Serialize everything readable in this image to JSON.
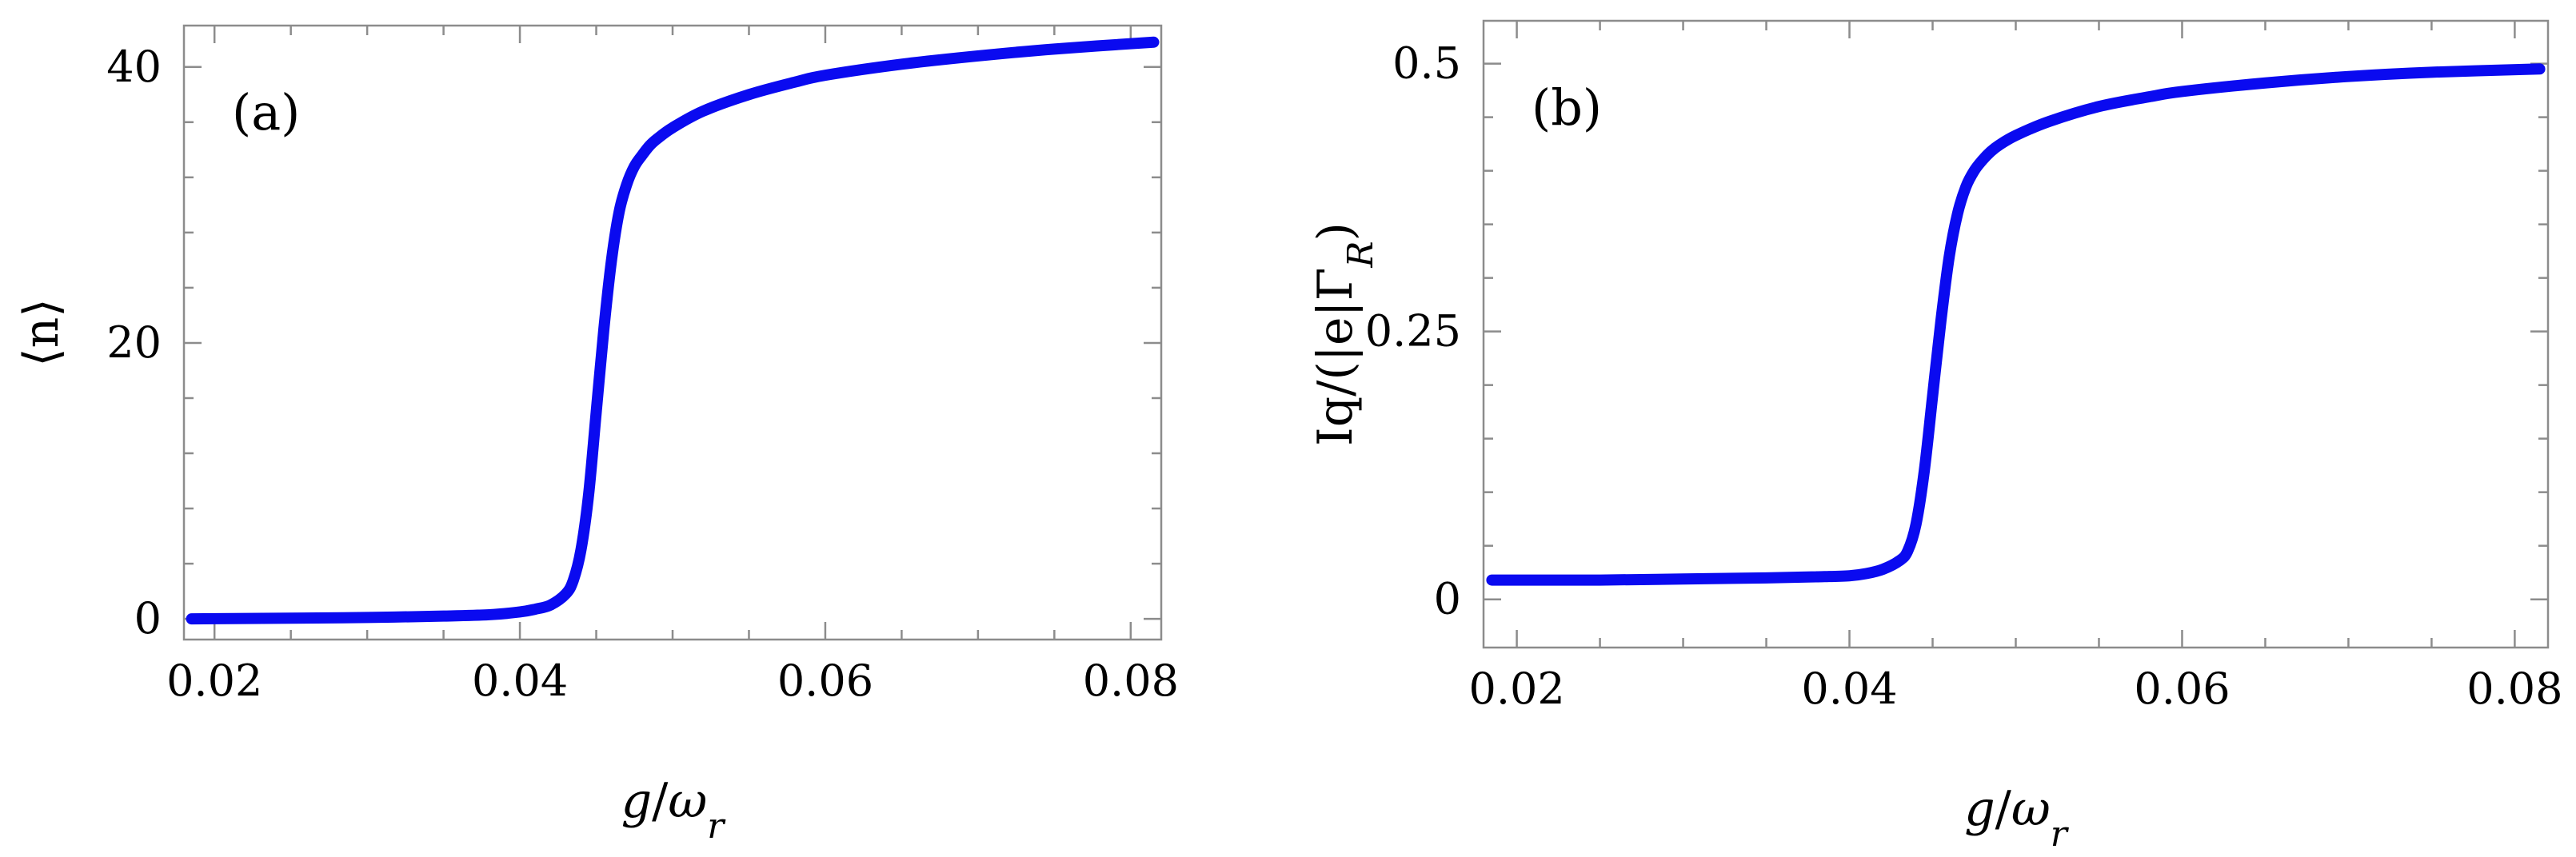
{
  "chart_data": [
    {
      "type": "line",
      "panel_label": "(a)",
      "xlabel": "g/ω_r",
      "ylabel": "⟨n⟩",
      "xlim": [
        0.018,
        0.082
      ],
      "ylim": [
        -1.5,
        43
      ],
      "x_ticks": [
        0.02,
        0.04,
        0.06,
        0.08
      ],
      "x_tick_labels": [
        "0.02",
        "0.04",
        "0.06",
        "0.08"
      ],
      "y_ticks": [
        0,
        20,
        40
      ],
      "y_tick_labels": [
        "0",
        "20",
        "40"
      ],
      "grid": false,
      "color": "#0a0af0",
      "series": [
        {
          "x": [
            0.0185,
            0.025,
            0.03,
            0.035,
            0.038,
            0.04,
            0.041,
            0.042,
            0.043,
            0.0435,
            0.044,
            0.0445,
            0.045,
            0.0455,
            0.046,
            0.0465,
            0.047,
            0.0475,
            0.048,
            0.0485,
            0.049,
            0.05,
            0.052,
            0.055,
            0.058,
            0.06,
            0.065,
            0.07,
            0.075,
            0.0815
          ],
          "y": [
            0.0,
            0.05,
            0.1,
            0.2,
            0.3,
            0.5,
            0.7,
            1.0,
            1.8,
            2.8,
            5.0,
            9.0,
            15.0,
            21.0,
            26.0,
            29.5,
            31.5,
            32.8,
            33.6,
            34.3,
            34.8,
            35.6,
            36.8,
            38.0,
            38.9,
            39.4,
            40.2,
            40.8,
            41.3,
            41.8
          ]
        }
      ]
    },
    {
      "type": "line",
      "panel_label": "(b)",
      "xlabel": "g/ω_r",
      "ylabel": "Iq/(|e|Γ_R)",
      "xlim": [
        0.018,
        0.082
      ],
      "ylim": [
        -0.045,
        0.54
      ],
      "x_ticks": [
        0.02,
        0.04,
        0.06,
        0.08
      ],
      "x_tick_labels": [
        "0.02",
        "0.04",
        "0.06",
        "0.08"
      ],
      "y_ticks": [
        0,
        0.25,
        0.5
      ],
      "y_tick_labels": [
        "0",
        "0.25",
        "0.5"
      ],
      "grid": false,
      "color": "#0a0af0",
      "series": [
        {
          "x": [
            0.0185,
            0.025,
            0.03,
            0.035,
            0.038,
            0.04,
            0.041,
            0.042,
            0.043,
            0.0435,
            0.044,
            0.0445,
            0.045,
            0.0455,
            0.046,
            0.0465,
            0.047,
            0.0475,
            0.048,
            0.0485,
            0.049,
            0.05,
            0.052,
            0.055,
            0.058,
            0.06,
            0.065,
            0.07,
            0.075,
            0.0815
          ],
          "y": [
            0.018,
            0.018,
            0.019,
            0.02,
            0.021,
            0.022,
            0.024,
            0.028,
            0.036,
            0.045,
            0.07,
            0.12,
            0.19,
            0.26,
            0.32,
            0.36,
            0.385,
            0.4,
            0.41,
            0.418,
            0.424,
            0.433,
            0.446,
            0.46,
            0.469,
            0.474,
            0.482,
            0.488,
            0.492,
            0.495
          ]
        }
      ]
    }
  ]
}
